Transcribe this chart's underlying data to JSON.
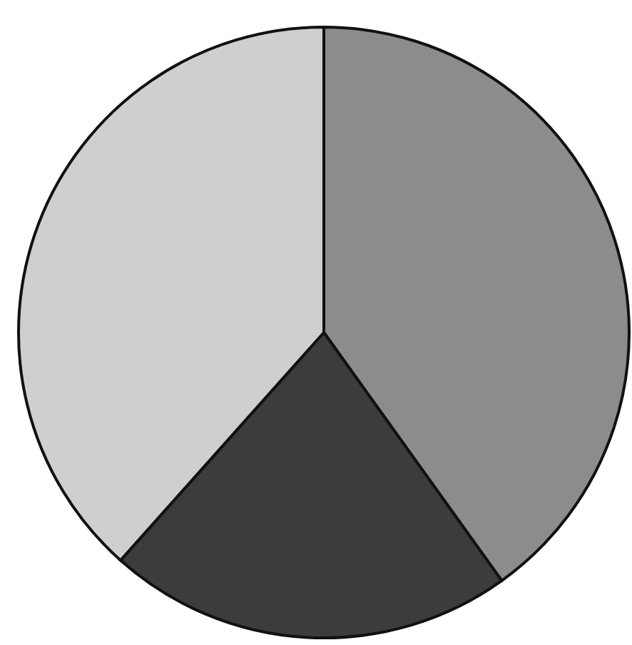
{
  "chart_data": {
    "type": "pie",
    "categories": [
      null,
      null,
      null
    ],
    "values": [
      40.1,
      21.5,
      38.4
    ],
    "colors": [
      "#8c8c8c",
      "#3c3c3c",
      "#cfcfcf"
    ]
  }
}
